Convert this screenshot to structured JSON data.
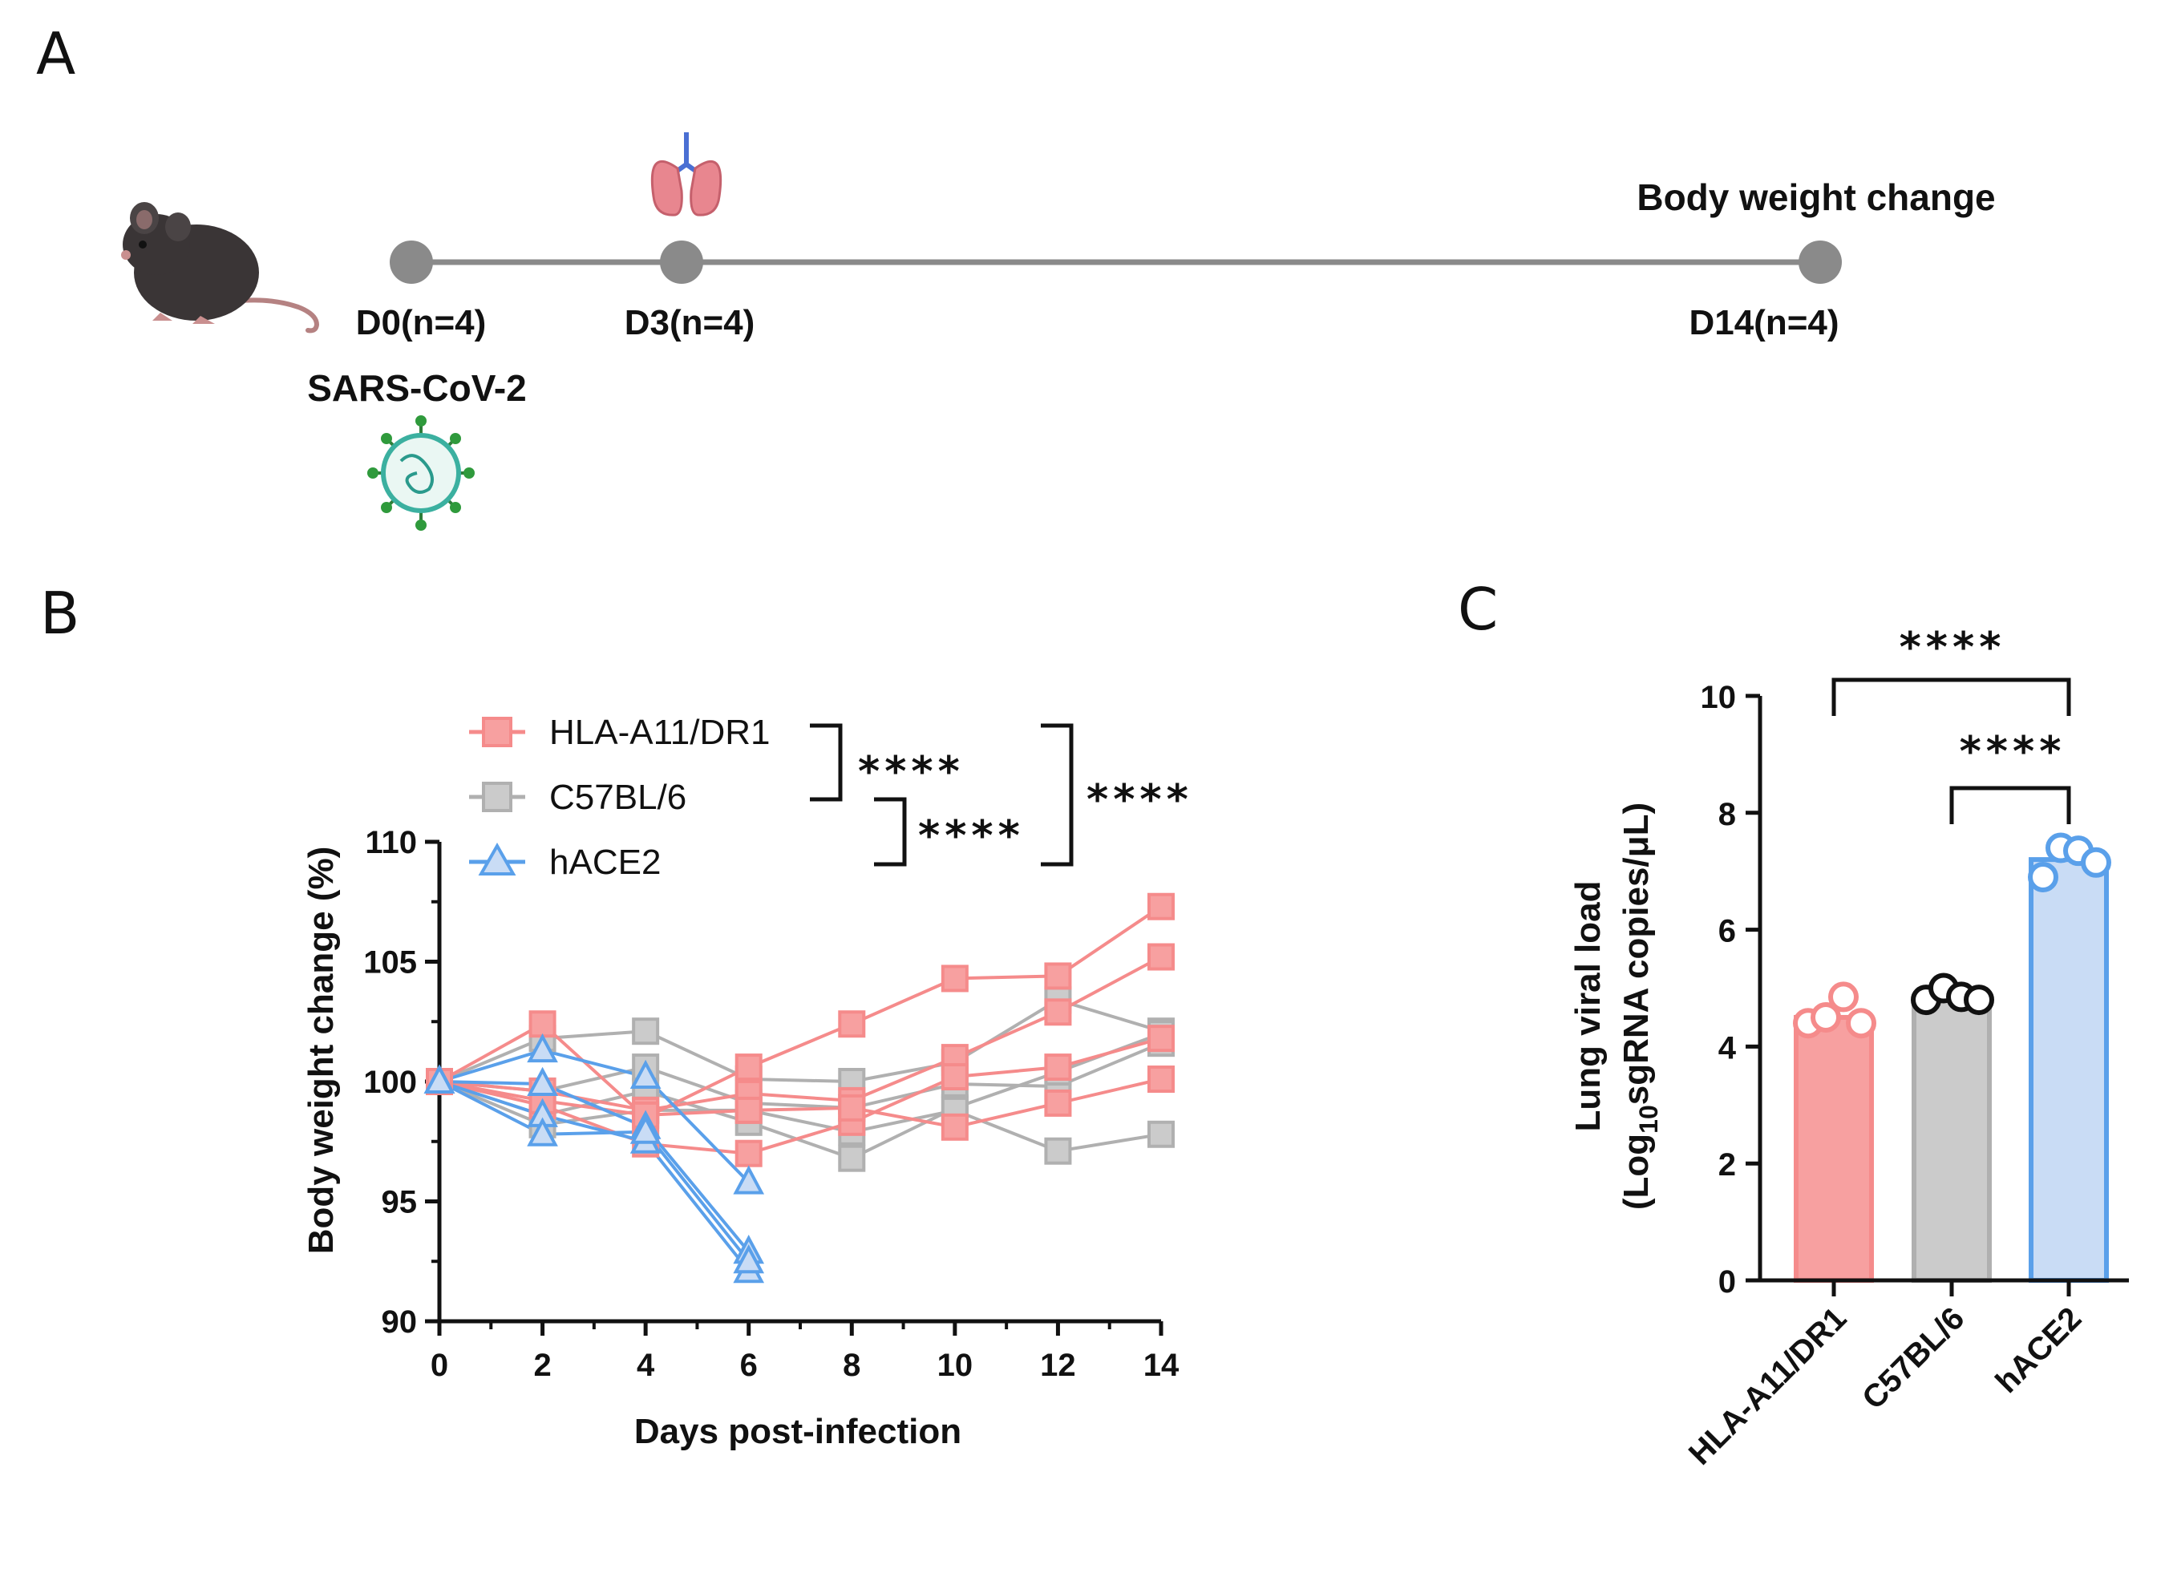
{
  "panels": {
    "a": "A",
    "b": "B",
    "c": "C"
  },
  "timeline": {
    "start_label": "D0(n=4)",
    "mid_label": "D3(n=4)",
    "end_label": "D14(n=4)",
    "end_title": "Body weight change",
    "virus_label": "SARS-CoV-2",
    "icons": [
      "mouse-icon",
      "lung-icon",
      "virus-icon"
    ]
  },
  "colors": {
    "red": "#f58b8b",
    "grey": "#b0b0b0",
    "blue": "#5aa0ea",
    "timeline": "#8a8a8a",
    "red_fill": "#f7a0a0",
    "grey_fill": "#cbcbcb",
    "blue_fill": "#c9dcf5"
  },
  "chart_data": [
    {
      "type": "line",
      "xlabel": "Days post-infection",
      "ylabel": "Body weight change (%)",
      "xlim": [
        0,
        14
      ],
      "ylim": [
        90,
        110
      ],
      "xticks": [
        "0",
        "2",
        "4",
        "6",
        "8",
        "10",
        "12",
        "14"
      ],
      "yticks": [
        "90",
        "95",
        "100",
        "105",
        "110"
      ],
      "significance": [
        "****",
        "****",
        "****"
      ],
      "legend": [
        "HLA-A11/DR1",
        "C57BL/6",
        "hACE2"
      ],
      "series": [
        {
          "name": "HLA-A11/DR1",
          "color_key": "red",
          "marker": "square",
          "lines": [
            [
              [
                0,
                100
              ],
              [
                2,
                102.4
              ],
              [
                4,
                98.5
              ],
              [
                6,
                100.6
              ],
              [
                8,
                102.4
              ],
              [
                10,
                104.3
              ],
              [
                12,
                104.4
              ],
              [
                14,
                107.3
              ]
            ],
            [
              [
                0,
                100
              ],
              [
                2,
                99.6
              ],
              [
                4,
                98.8
              ],
              [
                6,
                99.5
              ],
              [
                8,
                99.2
              ],
              [
                10,
                101.0
              ],
              [
                12,
                102.9
              ],
              [
                14,
                105.2
              ]
            ],
            [
              [
                0,
                100
              ],
              [
                2,
                99.0
              ],
              [
                4,
                97.4
              ],
              [
                6,
                97.0
              ],
              [
                8,
                98.3
              ],
              [
                10,
                100.2
              ],
              [
                12,
                100.6
              ],
              [
                14,
                101.8
              ]
            ],
            [
              [
                0,
                100
              ],
              [
                2,
                99.2
              ],
              [
                4,
                98.6
              ],
              [
                6,
                98.8
              ],
              [
                8,
                98.9
              ],
              [
                10,
                98.1
              ],
              [
                12,
                99.1
              ],
              [
                14,
                100.1
              ]
            ]
          ]
        },
        {
          "name": "C57BL/6",
          "color_key": "grey",
          "marker": "square",
          "lines": [
            [
              [
                0,
                100
              ],
              [
                2,
                101.8
              ],
              [
                4,
                102.1
              ],
              [
                6,
                100.1
              ],
              [
                8,
                100.0
              ],
              [
                10,
                100.8
              ],
              [
                12,
                103.4
              ],
              [
                14,
                102.1
              ]
            ],
            [
              [
                0,
                100
              ],
              [
                2,
                99.6
              ],
              [
                4,
                100.6
              ],
              [
                6,
                99.1
              ],
              [
                8,
                98.9
              ],
              [
                10,
                99.9
              ],
              [
                12,
                99.8
              ],
              [
                14,
                101.6
              ]
            ],
            [
              [
                0,
                100
              ],
              [
                2,
                98.6
              ],
              [
                4,
                99.6
              ],
              [
                6,
                98.3
              ],
              [
                8,
                96.8
              ],
              [
                10,
                98.9
              ],
              [
                12,
                100.4
              ],
              [
                14,
                102.0
              ]
            ],
            [
              [
                0,
                100
              ],
              [
                2,
                98.2
              ],
              [
                4,
                98.8
              ],
              [
                6,
                98.8
              ],
              [
                8,
                97.9
              ],
              [
                10,
                98.8
              ],
              [
                12,
                97.1
              ],
              [
                14,
                97.8
              ]
            ]
          ]
        },
        {
          "name": "hACE2",
          "color_key": "blue",
          "marker": "triangle",
          "lines": [
            [
              [
                0,
                100
              ],
              [
                2,
                101.3
              ],
              [
                4,
                100.2
              ],
              [
                6,
                95.8
              ]
            ],
            [
              [
                0,
                100
              ],
              [
                2,
                99.9
              ],
              [
                4,
                98.1
              ],
              [
                6,
                92.9
              ]
            ],
            [
              [
                0,
                100
              ],
              [
                2,
                98.6
              ],
              [
                4,
                97.5
              ],
              [
                6,
                92.1
              ]
            ],
            [
              [
                0,
                100
              ],
              [
                2,
                97.8
              ],
              [
                4,
                97.9
              ],
              [
                6,
                92.5
              ]
            ]
          ]
        }
      ]
    },
    {
      "type": "bar",
      "ylabel": "Lung viral load",
      "ylabel2_prefix": "(Log",
      "ylabel2_sub": "10",
      "ylabel2_suffix": "sgRNA copies/μL)",
      "ylim": [
        0,
        10
      ],
      "yticks": [
        "0",
        "2",
        "4",
        "6",
        "8",
        "10"
      ],
      "categories": [
        "HLA-A11/DR1",
        "C57BL/6",
        "hACE2"
      ],
      "values": [
        4.5,
        4.85,
        7.2
      ],
      "points": [
        [
          4.4,
          4.5,
          4.85,
          4.4
        ],
        [
          4.8,
          5.0,
          4.85,
          4.8
        ],
        [
          6.9,
          7.4,
          7.35,
          7.15
        ]
      ],
      "significance": [
        "****",
        "****"
      ]
    }
  ]
}
